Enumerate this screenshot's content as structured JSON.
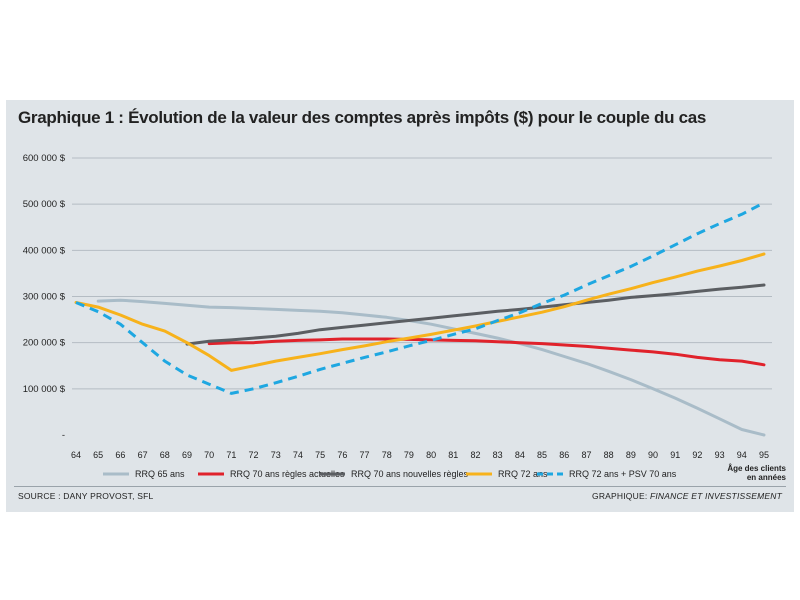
{
  "chart_data": {
    "type": "line",
    "title": "Graphique 1 : Évolution de la valeur des comptes après impôts ($) pour le couple du cas",
    "xlabel": "Âge des clients en années",
    "xlabel_lines": [
      "Âge des clients",
      "en années"
    ],
    "x_ticks": [
      64,
      65,
      66,
      67,
      68,
      69,
      70,
      71,
      72,
      73,
      74,
      75,
      76,
      77,
      78,
      79,
      80,
      81,
      82,
      83,
      84,
      85,
      86,
      87,
      88,
      89,
      90,
      91,
      92,
      93,
      94,
      95
    ],
    "xlim": [
      64,
      95
    ],
    "ylim": [
      0,
      600000
    ],
    "y_ticks": [
      0,
      100000,
      200000,
      300000,
      400000,
      500000,
      600000
    ],
    "y_tick_labels": [
      "-",
      "100 000 $",
      "200 000 $",
      "300 000 $",
      "400 000 $",
      "500 000 $",
      "600 000 $"
    ],
    "grid": true,
    "legend_position": "bottom",
    "series": [
      {
        "name": "RRQ 65 ans",
        "color": "#a9bcc8",
        "dash": false,
        "x": [
          65,
          66,
          67,
          68,
          69,
          70,
          71,
          72,
          73,
          74,
          75,
          76,
          77,
          78,
          79,
          80,
          81,
          82,
          83,
          84,
          85,
          86,
          87,
          88,
          89,
          90,
          91,
          92,
          93,
          94,
          95
        ],
        "values": [
          290000,
          292000,
          289000,
          285000,
          281000,
          277000,
          276000,
          274000,
          272000,
          270000,
          268000,
          265000,
          260000,
          255000,
          248000,
          240000,
          230000,
          220000,
          210000,
          198000,
          185000,
          170000,
          155000,
          138000,
          120000,
          100000,
          80000,
          58000,
          35000,
          12000,
          0
        ]
      },
      {
        "name": "RRQ 70 ans règles actuelles",
        "color": "#e0222b",
        "dash": false,
        "x": [
          70,
          71,
          72,
          73,
          74,
          75,
          76,
          77,
          78,
          79,
          80,
          81,
          82,
          83,
          84,
          85,
          86,
          87,
          88,
          89,
          90,
          91,
          92,
          93,
          94,
          95
        ],
        "values": [
          198000,
          200000,
          200000,
          203000,
          205000,
          206000,
          208000,
          208000,
          208000,
          207000,
          206000,
          205000,
          204000,
          202000,
          200000,
          198000,
          195000,
          192000,
          188000,
          184000,
          180000,
          175000,
          168000,
          163000,
          160000,
          152000
        ]
      },
      {
        "name": "RRQ 70 ans nouvelles règles",
        "color": "#5b5e62",
        "dash": false,
        "x": [
          69,
          70,
          71,
          72,
          73,
          74,
          75,
          76,
          77,
          78,
          79,
          80,
          81,
          82,
          83,
          84,
          85,
          86,
          87,
          88,
          89,
          90,
          91,
          92,
          93,
          94,
          95
        ],
        "values": [
          197000,
          203000,
          206000,
          210000,
          214000,
          220000,
          228000,
          233000,
          238000,
          243000,
          248000,
          253000,
          258000,
          263000,
          268000,
          272000,
          277000,
          282000,
          287000,
          292000,
          298000,
          302000,
          306000,
          311000,
          316000,
          320000,
          325000
        ]
      },
      {
        "name": "RRQ 72 ans",
        "color": "#f7b21b",
        "dash": false,
        "x": [
          64,
          65,
          66,
          67,
          68,
          69,
          70,
          71,
          72,
          73,
          74,
          75,
          76,
          77,
          78,
          79,
          80,
          81,
          82,
          83,
          84,
          85,
          86,
          87,
          88,
          89,
          90,
          91,
          92,
          93,
          94,
          95
        ],
        "values": [
          287000,
          277000,
          260000,
          240000,
          225000,
          200000,
          172000,
          140000,
          150000,
          160000,
          168000,
          176000,
          185000,
          193000,
          202000,
          210000,
          218000,
          227000,
          236000,
          246000,
          256000,
          266000,
          278000,
          292000,
          305000,
          317000,
          330000,
          342000,
          355000,
          366000,
          378000,
          392000
        ]
      },
      {
        "name": "RRQ 72 ans + PSV 70 ans",
        "color": "#1ea7e1",
        "dash": true,
        "x": [
          64,
          65,
          66,
          67,
          68,
          69,
          70,
          71,
          72,
          73,
          74,
          75,
          76,
          77,
          78,
          79,
          80,
          81,
          82,
          83,
          84,
          85,
          86,
          87,
          88,
          89,
          90,
          91,
          92,
          93,
          94,
          95
        ],
        "values": [
          287000,
          267000,
          240000,
          200000,
          160000,
          130000,
          110000,
          90000,
          100000,
          113000,
          127000,
          142000,
          155000,
          168000,
          180000,
          193000,
          205000,
          218000,
          230000,
          248000,
          265000,
          285000,
          303000,
          325000,
          345000,
          365000,
          388000,
          412000,
          436000,
          458000,
          478000,
          503000
        ]
      }
    ]
  },
  "footer": {
    "source": "SOURCE : DANY PROVOST, SFL",
    "credit_prefix": "GRAPHIQUE: ",
    "credit_name": "FINANCE ET INVESTISSEMENT"
  }
}
